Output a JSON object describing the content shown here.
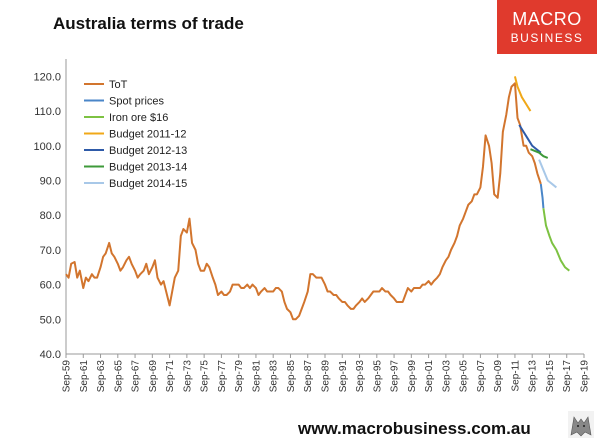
{
  "branding": {
    "logo_line1": "MACRO",
    "logo_line2": "BUSINESS",
    "footer_url": "www.macrobusiness.com.au"
  },
  "chart_data": {
    "type": "line",
    "title": "Australia terms of trade",
    "xlabel": "",
    "ylabel": "",
    "ylim": [
      40,
      125
    ],
    "xlim": [
      "1959-09",
      "2019-09"
    ],
    "y_ticks": [
      "40.0",
      "50.0",
      "60.0",
      "70.0",
      "80.0",
      "90.0",
      "100.0",
      "110.0",
      "120.0"
    ],
    "x_ticks": [
      "Sep-59",
      "Sep-61",
      "Sep-63",
      "Sep-65",
      "Sep-67",
      "Sep-69",
      "Sep-71",
      "Sep-73",
      "Sep-75",
      "Sep-77",
      "Sep-79",
      "Sep-81",
      "Sep-83",
      "Sep-85",
      "Sep-87",
      "Sep-89",
      "Sep-91",
      "Sep-93",
      "Sep-95",
      "Sep-97",
      "Sep-99",
      "Sep-01",
      "Sep-03",
      "Sep-05",
      "Sep-07",
      "Sep-09",
      "Sep-11",
      "Sep-13",
      "Sep-15",
      "Sep-17",
      "Sep-19"
    ],
    "grid": false,
    "legend": "top-left",
    "series": [
      {
        "name": "ToT",
        "color": "#d2752e",
        "points": [
          [
            1959.7,
            63
          ],
          [
            1960.0,
            62
          ],
          [
            1960.3,
            66
          ],
          [
            1960.7,
            66.5
          ],
          [
            1961.0,
            62
          ],
          [
            1961.3,
            64
          ],
          [
            1961.7,
            59
          ],
          [
            1962.0,
            62
          ],
          [
            1962.3,
            61
          ],
          [
            1962.7,
            63
          ],
          [
            1963.0,
            62
          ],
          [
            1963.3,
            62
          ],
          [
            1963.7,
            65
          ],
          [
            1964.0,
            68
          ],
          [
            1964.3,
            69
          ],
          [
            1964.7,
            72
          ],
          [
            1965.0,
            69
          ],
          [
            1965.3,
            68
          ],
          [
            1965.7,
            66
          ],
          [
            1966.0,
            64
          ],
          [
            1966.3,
            65
          ],
          [
            1966.7,
            67
          ],
          [
            1967.0,
            68
          ],
          [
            1967.3,
            66
          ],
          [
            1967.7,
            64
          ],
          [
            1968.0,
            62
          ],
          [
            1968.3,
            63
          ],
          [
            1968.7,
            64
          ],
          [
            1969.0,
            66
          ],
          [
            1969.3,
            63
          ],
          [
            1969.7,
            65
          ],
          [
            1970.0,
            67
          ],
          [
            1970.3,
            62
          ],
          [
            1970.7,
            60
          ],
          [
            1971.0,
            61
          ],
          [
            1971.3,
            58
          ],
          [
            1971.7,
            54
          ],
          [
            1972.0,
            58
          ],
          [
            1972.3,
            62
          ],
          [
            1972.7,
            64
          ],
          [
            1973.0,
            74
          ],
          [
            1973.3,
            76
          ],
          [
            1973.7,
            75
          ],
          [
            1974.0,
            79
          ],
          [
            1974.3,
            72
          ],
          [
            1974.7,
            70
          ],
          [
            1975.0,
            66
          ],
          [
            1975.3,
            64
          ],
          [
            1975.7,
            64
          ],
          [
            1976.0,
            66
          ],
          [
            1976.3,
            65
          ],
          [
            1976.7,
            62
          ],
          [
            1977.0,
            60
          ],
          [
            1977.3,
            57
          ],
          [
            1977.7,
            58
          ],
          [
            1978.0,
            57
          ],
          [
            1978.3,
            57
          ],
          [
            1978.7,
            58
          ],
          [
            1979.0,
            60
          ],
          [
            1979.3,
            60
          ],
          [
            1979.7,
            60
          ],
          [
            1980.0,
            59
          ],
          [
            1980.3,
            59
          ],
          [
            1980.7,
            60
          ],
          [
            1981.0,
            59
          ],
          [
            1981.3,
            60
          ],
          [
            1981.7,
            59
          ],
          [
            1982.0,
            57
          ],
          [
            1982.3,
            58
          ],
          [
            1982.7,
            59
          ],
          [
            1983.0,
            58
          ],
          [
            1983.3,
            58
          ],
          [
            1983.7,
            58
          ],
          [
            1984.0,
            59
          ],
          [
            1984.3,
            59
          ],
          [
            1984.7,
            58
          ],
          [
            1985.0,
            55
          ],
          [
            1985.3,
            53
          ],
          [
            1985.7,
            52
          ],
          [
            1986.0,
            50
          ],
          [
            1986.3,
            50
          ],
          [
            1986.7,
            51
          ],
          [
            1987.0,
            53
          ],
          [
            1987.3,
            55
          ],
          [
            1987.7,
            58
          ],
          [
            1988.0,
            63
          ],
          [
            1988.3,
            63
          ],
          [
            1988.7,
            62
          ],
          [
            1989.0,
            62
          ],
          [
            1989.3,
            62
          ],
          [
            1989.7,
            60
          ],
          [
            1990.0,
            58
          ],
          [
            1990.3,
            58
          ],
          [
            1990.7,
            57
          ],
          [
            1991.0,
            57
          ],
          [
            1991.3,
            56
          ],
          [
            1991.7,
            55
          ],
          [
            1992.0,
            55
          ],
          [
            1992.3,
            54
          ],
          [
            1992.7,
            53
          ],
          [
            1993.0,
            53
          ],
          [
            1993.3,
            54
          ],
          [
            1993.7,
            55
          ],
          [
            1994.0,
            56
          ],
          [
            1994.3,
            55
          ],
          [
            1994.7,
            56
          ],
          [
            1995.0,
            57
          ],
          [
            1995.3,
            58
          ],
          [
            1995.7,
            58
          ],
          [
            1996.0,
            58
          ],
          [
            1996.3,
            59
          ],
          [
            1996.7,
            58
          ],
          [
            1997.0,
            58
          ],
          [
            1997.3,
            57
          ],
          [
            1997.7,
            56
          ],
          [
            1998.0,
            55
          ],
          [
            1998.3,
            55
          ],
          [
            1998.7,
            55
          ],
          [
            1999.0,
            57
          ],
          [
            1999.3,
            59
          ],
          [
            1999.7,
            58
          ],
          [
            2000.0,
            59
          ],
          [
            2000.3,
            59
          ],
          [
            2000.7,
            59
          ],
          [
            2001.0,
            60
          ],
          [
            2001.3,
            60
          ],
          [
            2001.7,
            61
          ],
          [
            2002.0,
            60
          ],
          [
            2002.3,
            61
          ],
          [
            2002.7,
            62
          ],
          [
            2003.0,
            63
          ],
          [
            2003.3,
            65
          ],
          [
            2003.7,
            67
          ],
          [
            2004.0,
            68
          ],
          [
            2004.3,
            70
          ],
          [
            2004.7,
            72
          ],
          [
            2005.0,
            74
          ],
          [
            2005.3,
            77
          ],
          [
            2005.7,
            79
          ],
          [
            2006.0,
            81
          ],
          [
            2006.3,
            83
          ],
          [
            2006.7,
            84
          ],
          [
            2007.0,
            86
          ],
          [
            2007.3,
            86
          ],
          [
            2007.7,
            88
          ],
          [
            2008.0,
            94
          ],
          [
            2008.3,
            103
          ],
          [
            2008.7,
            100
          ],
          [
            2009.0,
            95
          ],
          [
            2009.3,
            86
          ],
          [
            2009.7,
            85
          ],
          [
            2010.0,
            92
          ],
          [
            2010.3,
            104
          ],
          [
            2010.7,
            109
          ],
          [
            2011.0,
            114
          ],
          [
            2011.3,
            117
          ],
          [
            2011.7,
            118
          ],
          [
            2012.0,
            108
          ],
          [
            2012.3,
            106
          ],
          [
            2012.7,
            100
          ],
          [
            2013.0,
            100
          ],
          [
            2013.3,
            98
          ],
          [
            2013.7,
            97
          ],
          [
            2014.0,
            95
          ],
          [
            2014.3,
            92
          ],
          [
            2014.7,
            89
          ]
        ]
      },
      {
        "name": "Spot prices",
        "color": "#4a86c8",
        "points": [
          [
            2014.7,
            89
          ],
          [
            2014.9,
            85
          ],
          [
            2015.0,
            82
          ]
        ]
      },
      {
        "name": "Iron ore $16",
        "color": "#7dc242",
        "points": [
          [
            2015.0,
            82
          ],
          [
            2015.3,
            77
          ],
          [
            2015.7,
            74
          ],
          [
            2016.0,
            72
          ],
          [
            2016.5,
            70
          ],
          [
            2017.0,
            67
          ],
          [
            2017.5,
            65
          ],
          [
            2018.0,
            64
          ]
        ]
      },
      {
        "name": "Budget 2011-12",
        "color": "#f0a818",
        "points": [
          [
            2011.7,
            120
          ],
          [
            2012.0,
            117
          ],
          [
            2012.5,
            114
          ],
          [
            2013.0,
            112
          ],
          [
            2013.5,
            110
          ]
        ]
      },
      {
        "name": "Budget 2012-13",
        "color": "#2e5aa8",
        "points": [
          [
            2012.2,
            106
          ],
          [
            2012.7,
            104
          ],
          [
            2013.2,
            102
          ],
          [
            2013.7,
            100
          ],
          [
            2014.2,
            99
          ],
          [
            2014.7,
            98
          ]
        ]
      },
      {
        "name": "Budget 2013-14",
        "color": "#3e9a3a",
        "points": [
          [
            2013.5,
            99
          ],
          [
            2014.0,
            98.5
          ],
          [
            2014.5,
            98
          ],
          [
            2015.0,
            97
          ],
          [
            2015.5,
            96.5
          ]
        ]
      },
      {
        "name": "Budget 2014-15",
        "color": "#a8c8e8",
        "points": [
          [
            2014.5,
            96
          ],
          [
            2015.0,
            93
          ],
          [
            2015.5,
            90
          ],
          [
            2016.0,
            89
          ],
          [
            2016.5,
            88
          ]
        ]
      }
    ]
  }
}
